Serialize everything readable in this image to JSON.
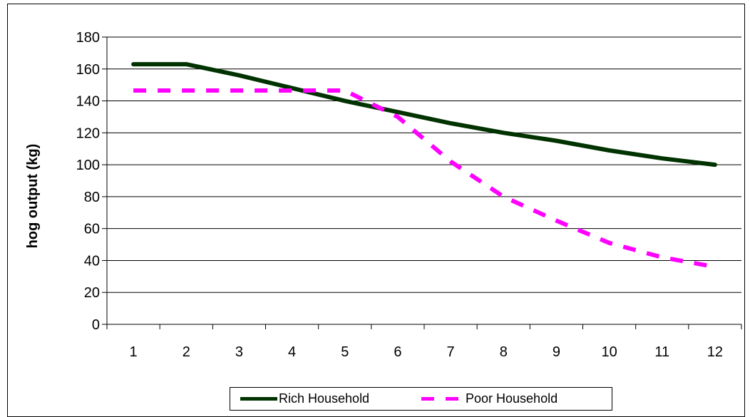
{
  "chart_data": {
    "type": "line",
    "title": "",
    "xlabel": "",
    "ylabel": "hog output (kg)",
    "categories": [
      "1",
      "2",
      "3",
      "4",
      "5",
      "6",
      "7",
      "8",
      "9",
      "10",
      "11",
      "12"
    ],
    "y_ticks": [
      "0",
      "20",
      "40",
      "60",
      "80",
      "100",
      "120",
      "140",
      "160",
      "180"
    ],
    "ylim": [
      0,
      180
    ],
    "grid": "horizontal",
    "legend_position": "bottom",
    "series": [
      {
        "name": "Rich Household",
        "style": "solid",
        "color": "#003300",
        "values": [
          163,
          163,
          156,
          148,
          140,
          133,
          126,
          120,
          115,
          109,
          104,
          100
        ]
      },
      {
        "name": "Poor Household",
        "style": "dashed",
        "color": "#ff00ff",
        "values": [
          146.5,
          146.5,
          146.5,
          146.5,
          146.5,
          130,
          102,
          80,
          65,
          51,
          42,
          36
        ]
      }
    ]
  }
}
